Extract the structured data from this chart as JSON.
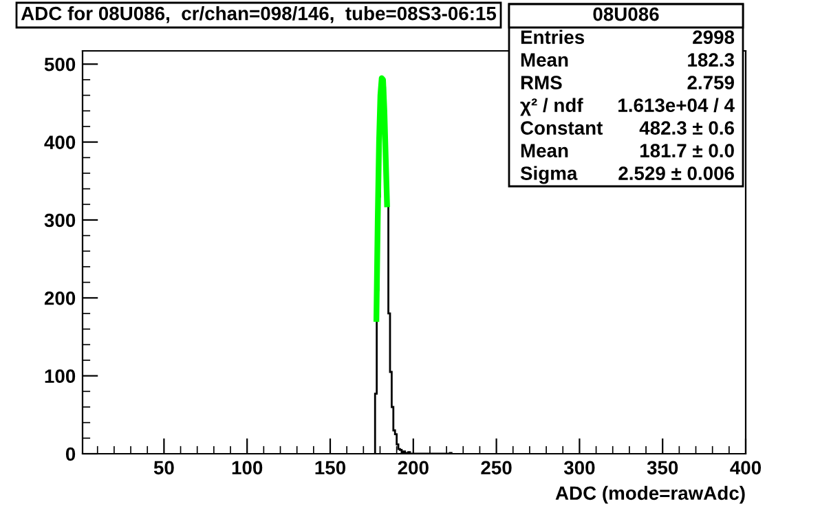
{
  "chart_data": {
    "type": "histogram",
    "title": "ADC for 08U086,  cr/chan=098/146,  tube=08S3-06:15",
    "xlabel": "ADC (mode=rawAdc)",
    "color": "#000000",
    "bins": [
      177,
      178,
      179,
      180,
      181,
      182,
      183,
      184,
      185,
      186,
      187,
      188,
      189,
      190,
      191,
      192,
      193,
      194,
      195,
      196,
      197,
      198,
      199,
      200,
      201,
      202,
      203,
      204,
      205,
      206,
      207,
      208,
      209,
      210,
      211,
      212,
      213,
      214,
      215,
      216,
      217,
      218,
      219,
      220,
      221,
      222,
      223
    ],
    "values": [
      77,
      210,
      330,
      430,
      480,
      470,
      400,
      320,
      180,
      105,
      60,
      30,
      25,
      12,
      6,
      5,
      2,
      3,
      1,
      0,
      2,
      0,
      0,
      0,
      0,
      0,
      0,
      0,
      0,
      0,
      0,
      0,
      0,
      0,
      0,
      0,
      0,
      0,
      0,
      0,
      0,
      0,
      0,
      0,
      0,
      1
    ],
    "series": [
      {
        "type": "line",
        "color": "#00ff00",
        "x": [
          177.8,
          178.6,
          179.4,
          180.2,
          181.0,
          181.8,
          182.6,
          183.4,
          184.2
        ],
        "values": [
          173,
          300,
          400,
          460,
          482,
          480,
          440,
          380,
          320
        ]
      }
    ],
    "xlim": [
      1,
      400
    ],
    "xticks": [
      50,
      100,
      150,
      200,
      250,
      300,
      350,
      400
    ],
    "ylim": [
      0,
      517
    ],
    "yticks": [
      0,
      100,
      200,
      300,
      400,
      500
    ],
    "annotations": [
      "08U086",
      "Entries",
      "2998",
      "Mean",
      "182.3",
      "RMS",
      "2.759",
      "χ² / ndf",
      "1.613e+04 / 4",
      "Constant",
      "482.3 ± 0.6",
      "Mean",
      "181.7 ± 0.0",
      "Sigma",
      "2.529 ± 0.006"
    ]
  }
}
